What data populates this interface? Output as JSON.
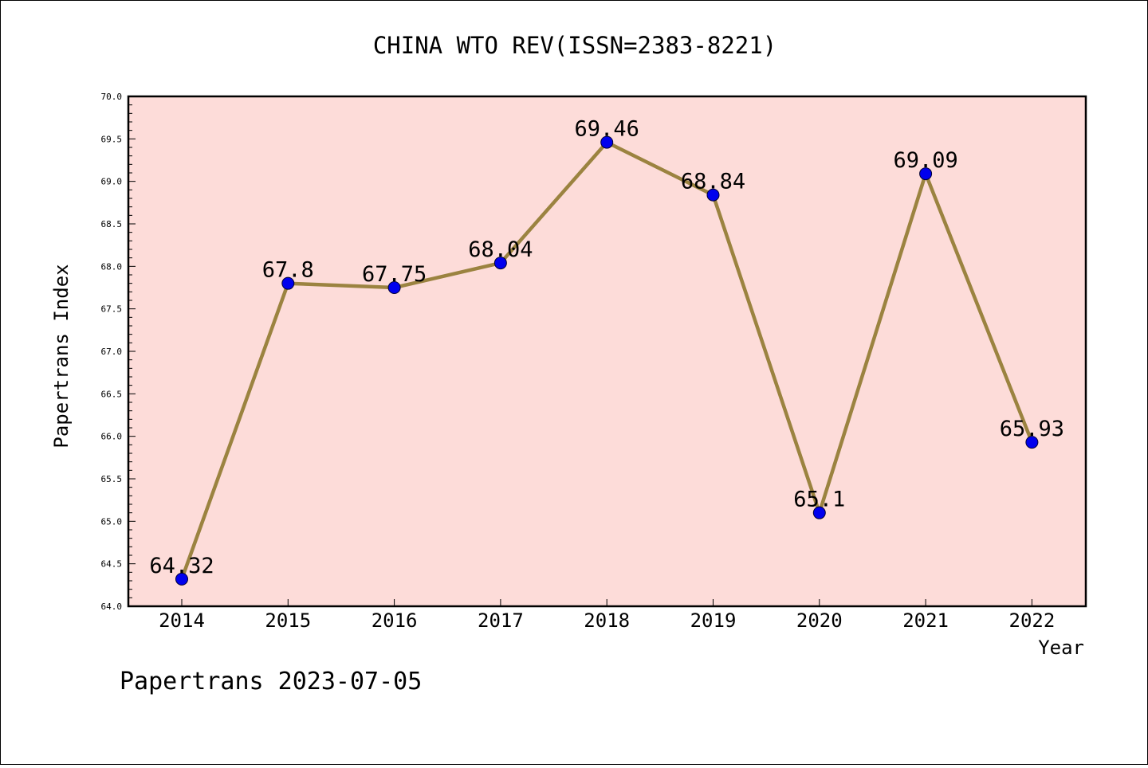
{
  "chart_data": {
    "type": "line",
    "title": "CHINA WTO REV(ISSN=2383-8221)",
    "xlabel": "Year",
    "ylabel": "Papertrans Index",
    "categories": [
      "2014",
      "2015",
      "2016",
      "2017",
      "2018",
      "2019",
      "2020",
      "2021",
      "2022"
    ],
    "series": [
      {
        "values": [
          64.32,
          67.8,
          67.75,
          68.04,
          69.46,
          68.84,
          65.1,
          69.09,
          65.93
        ]
      }
    ],
    "data_labels": [
      "64.32",
      "67.8",
      "67.75",
      "68.04",
      "69.46",
      "68.84",
      "65.1",
      "69.09",
      "65.93"
    ],
    "ylim": [
      64.0,
      70.0
    ],
    "yticks": [
      "64.0",
      "64.5",
      "65.0",
      "65.5",
      "66.0",
      "66.5",
      "67.0",
      "67.5",
      "68.0",
      "68.5",
      "69.0",
      "69.5",
      "70.0"
    ],
    "grid": false,
    "colors": {
      "plot_background": "#fddcd9",
      "line": "#9b8340",
      "marker": "#0000ee"
    }
  },
  "footer": {
    "text": "Papertrans 2023-07-05"
  }
}
